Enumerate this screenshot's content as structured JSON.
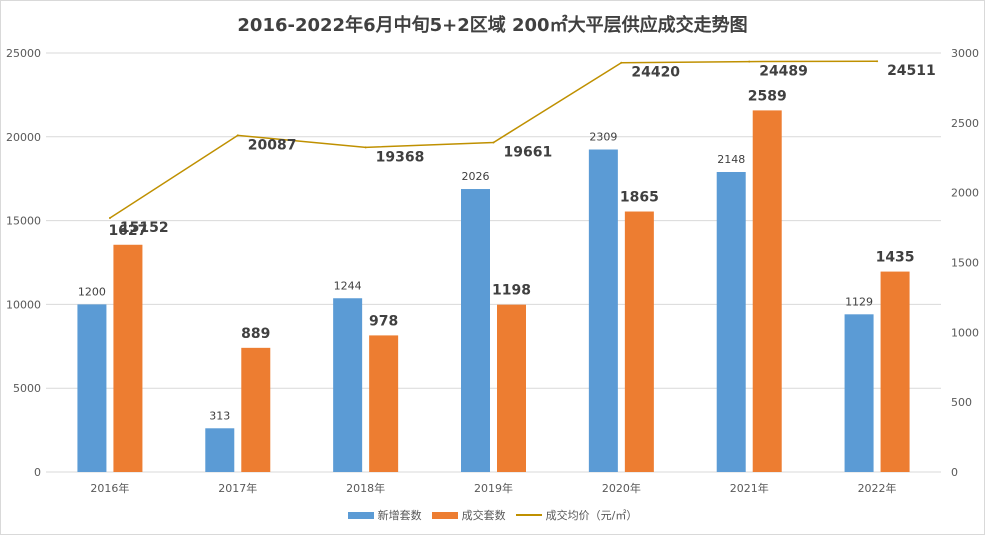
{
  "chart_data": {
    "type": "bar+line",
    "title": "2016-2022年6月中旬5+2区域 200㎡大平层供应成交走势图",
    "categories": [
      "2016年",
      "2017年",
      "2018年",
      "2019年",
      "2020年",
      "2021年",
      "2022年"
    ],
    "series": [
      {
        "name": "新增套数",
        "type": "bar",
        "axis": "right",
        "color": "#5b9bd5",
        "values": [
          1200,
          313,
          1244,
          2026,
          2309,
          2148,
          1129
        ]
      },
      {
        "name": "成交套数",
        "type": "bar",
        "axis": "right",
        "color": "#ed7d31",
        "values": [
          1627,
          889,
          978,
          1198,
          1865,
          2589,
          1435
        ]
      },
      {
        "name": "成交均价（元/㎡）",
        "type": "line",
        "axis": "left",
        "color": "#bf9000",
        "values": [
          15152,
          20087,
          19368,
          19661,
          24420,
          24489,
          24511
        ]
      }
    ],
    "left_axis": {
      "ticks": [
        0,
        5000,
        10000,
        15000,
        20000,
        25000
      ],
      "range": [
        0,
        25000
      ]
    },
    "right_axis": {
      "ticks": [
        0,
        500,
        1000,
        1500,
        2000,
        2500,
        3000
      ],
      "range": [
        0,
        3000
      ]
    },
    "grid": true,
    "legend_position": "bottom"
  }
}
